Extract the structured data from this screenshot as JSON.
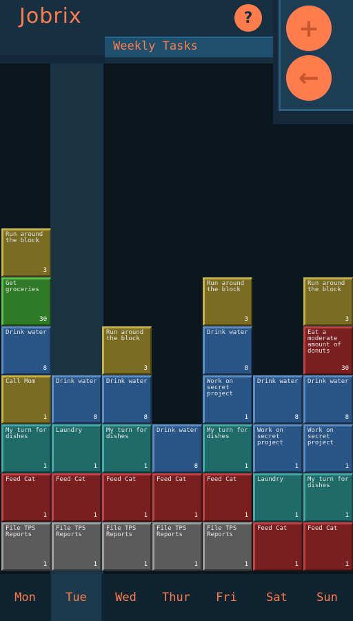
{
  "app": {
    "title": "Jobrix",
    "subtitle": "Weekly Tasks",
    "help_label": "?",
    "add_label": "+",
    "back_label": "←"
  },
  "colors": {
    "accent": "#ff7d4d",
    "background": "#0c171d",
    "header": "#173041",
    "yellow": "#7a6c22",
    "green": "#2e7a27",
    "blue": "#2a5687",
    "teal": "#1e6b6a",
    "red": "#7a1f1f",
    "grey": "#5b5b5b"
  },
  "days": [
    {
      "label": "Mon"
    },
    {
      "label": "Tue",
      "selected": true
    },
    {
      "label": "Wed"
    },
    {
      "label": "Thur"
    },
    {
      "label": "Fri"
    },
    {
      "label": "Sat"
    },
    {
      "label": "Sun"
    }
  ],
  "columns": [
    {
      "day": "Mon",
      "tasks": [
        {
          "label": "Run around the block",
          "points": "3",
          "color": "yellow"
        },
        {
          "label": "Get groceries",
          "points": "30",
          "color": "green"
        },
        {
          "label": "Drink water",
          "points": "8",
          "color": "blue"
        },
        {
          "label": "Call Mom",
          "points": "1",
          "color": "yellow"
        },
        {
          "label": "My turn for dishes",
          "points": "1",
          "color": "teal"
        },
        {
          "label": "Feed Cat",
          "points": "1",
          "color": "red"
        },
        {
          "label": "File TPS Reports",
          "points": "1",
          "color": "grey"
        }
      ]
    },
    {
      "day": "Tue",
      "tasks": [
        {
          "label": "Drink water",
          "points": "8",
          "color": "blue"
        },
        {
          "label": "Laundry",
          "points": "1",
          "color": "teal"
        },
        {
          "label": "Feed Cat",
          "points": "1",
          "color": "red"
        },
        {
          "label": "File TPS Reports",
          "points": "1",
          "color": "grey"
        }
      ]
    },
    {
      "day": "Wed",
      "tasks": [
        {
          "label": "Run around the block",
          "points": "3",
          "color": "yellow"
        },
        {
          "label": "Drink water",
          "points": "8",
          "color": "blue"
        },
        {
          "label": "My turn for dishes",
          "points": "1",
          "color": "teal"
        },
        {
          "label": "Feed Cat",
          "points": "1",
          "color": "red"
        },
        {
          "label": "File TPS Reports",
          "points": "1",
          "color": "grey"
        }
      ]
    },
    {
      "day": "Thur",
      "tasks": [
        {
          "label": "Drink water",
          "points": "8",
          "color": "blue"
        },
        {
          "label": "Feed Cat",
          "points": "1",
          "color": "red"
        },
        {
          "label": "File TPS Reports",
          "points": "1",
          "color": "grey"
        }
      ]
    },
    {
      "day": "Fri",
      "tasks": [
        {
          "label": "Run around the block",
          "points": "3",
          "color": "yellow"
        },
        {
          "label": "Drink water",
          "points": "8",
          "color": "blue"
        },
        {
          "label": "Work on secret project",
          "points": "1",
          "color": "blue"
        },
        {
          "label": "My turn for dishes",
          "points": "1",
          "color": "teal"
        },
        {
          "label": "Feed Cat",
          "points": "1",
          "color": "red"
        },
        {
          "label": "File TPS Reports",
          "points": "1",
          "color": "grey"
        }
      ]
    },
    {
      "day": "Sat",
      "tasks": [
        {
          "label": "Drink water",
          "points": "8",
          "color": "blue"
        },
        {
          "label": "Work on secret project",
          "points": "1",
          "color": "blue"
        },
        {
          "label": "Laundry",
          "points": "1",
          "color": "teal"
        },
        {
          "label": "Feed Cat",
          "points": "1",
          "color": "red"
        }
      ]
    },
    {
      "day": "Sun",
      "tasks": [
        {
          "label": "Run around the block",
          "points": "3",
          "color": "yellow"
        },
        {
          "label": "Eat a moderate amount of donuts",
          "points": "30",
          "color": "red"
        },
        {
          "label": "Drink water",
          "points": "8",
          "color": "blue"
        },
        {
          "label": "Work on secret project",
          "points": "1",
          "color": "blue"
        },
        {
          "label": "My turn for dishes",
          "points": "1",
          "color": "teal"
        },
        {
          "label": "Feed Cat",
          "points": "1",
          "color": "red"
        }
      ]
    }
  ]
}
